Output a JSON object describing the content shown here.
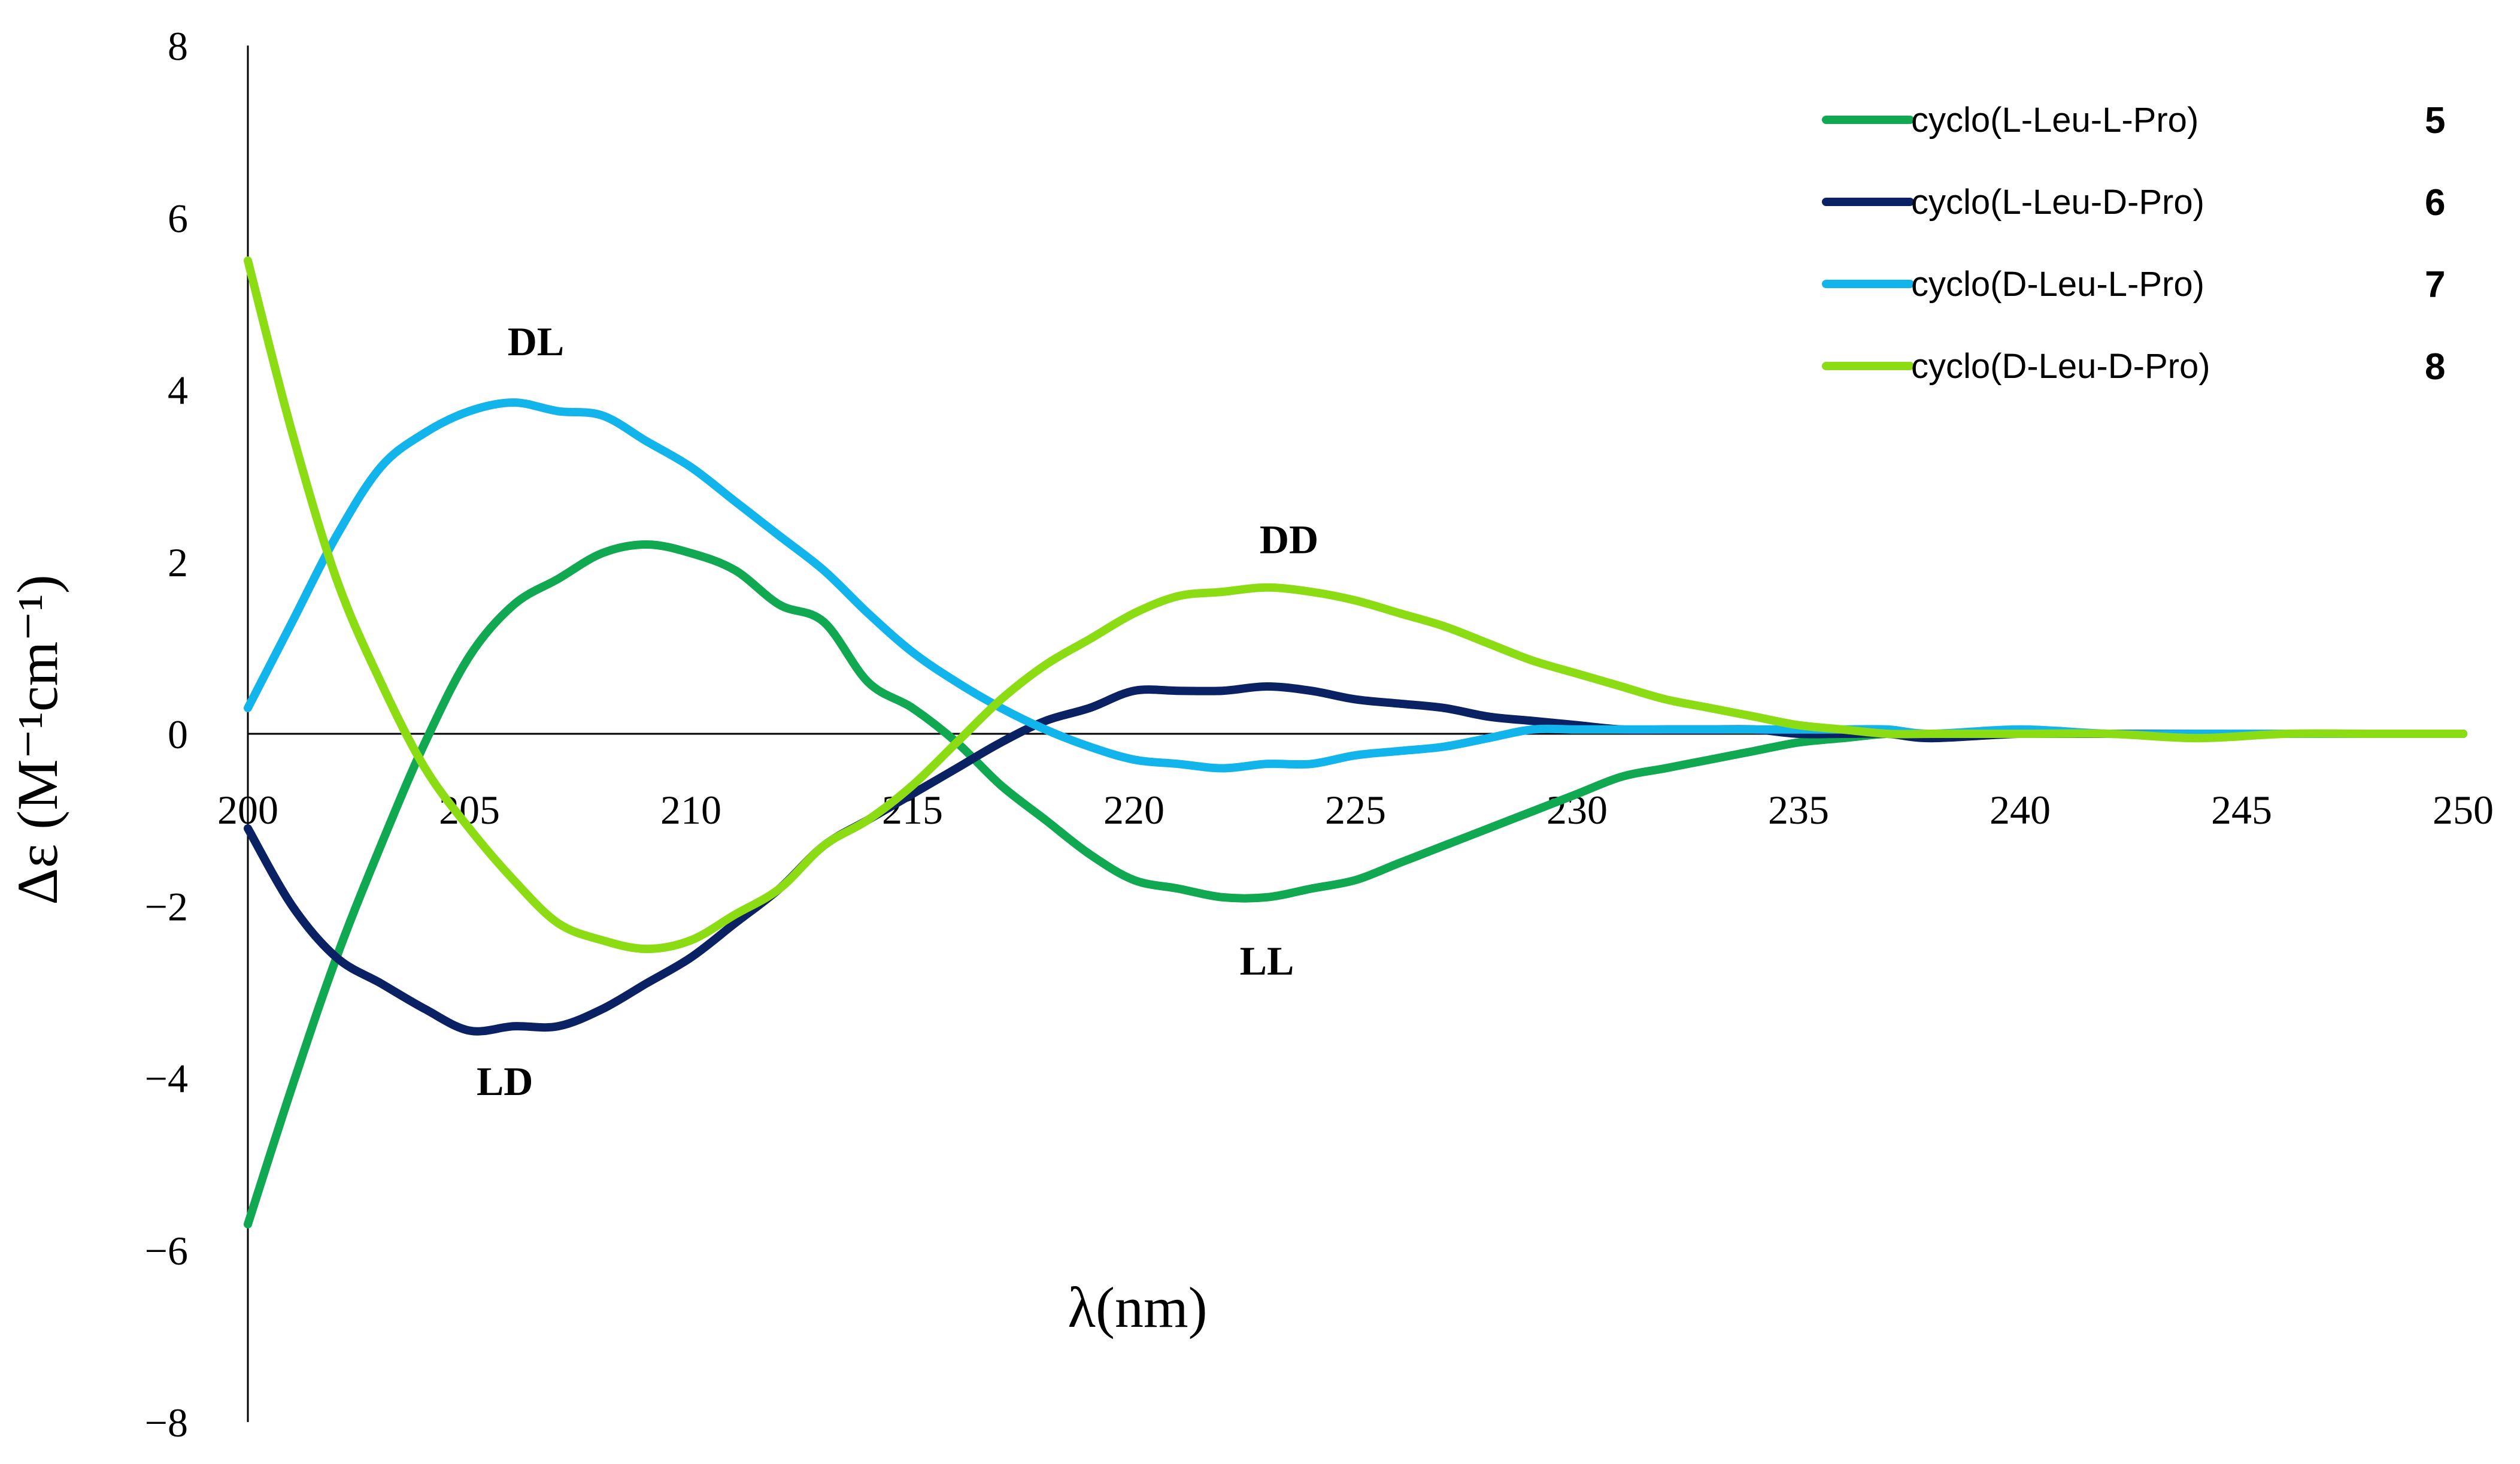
{
  "chart_data": {
    "type": "line",
    "title": "",
    "xlabel": "λ(nm)",
    "ylabel": "Δε (M⁻¹cm⁻¹)",
    "xlim": [
      200,
      250
    ],
    "ylim": [
      -8,
      8
    ],
    "x_ticks": [
      "200",
      "205",
      "210",
      "215",
      "220",
      "225",
      "230",
      "235",
      "240",
      "245",
      "250"
    ],
    "y_ticks": [
      "8",
      "6",
      "4",
      "2",
      "0",
      "−2",
      "−4",
      "−6",
      "−8"
    ],
    "grid": false,
    "legend_position": "top-right",
    "series": [
      {
        "name": "cyclo(L-Leu-L-Pro)",
        "number": "5",
        "color": "#10a850",
        "x": [
          200,
          201,
          202,
          203,
          204,
          205,
          206,
          207,
          208,
          209,
          210,
          211,
          212,
          213,
          214,
          215,
          216,
          217,
          218,
          219,
          220,
          221,
          222,
          223,
          224,
          225,
          226,
          227,
          228,
          229,
          230,
          231,
          232,
          233,
          234,
          235,
          236,
          237,
          238,
          240,
          242,
          244,
          246,
          248,
          250
        ],
        "y": [
          -5.7,
          -4.1,
          -2.6,
          -1.3,
          -0.1,
          0.9,
          1.5,
          1.8,
          2.1,
          2.2,
          2.1,
          1.9,
          1.5,
          1.3,
          0.6,
          0.3,
          -0.1,
          -0.6,
          -1.0,
          -1.4,
          -1.7,
          -1.8,
          -1.9,
          -1.9,
          -1.8,
          -1.7,
          -1.5,
          -1.3,
          -1.1,
          -0.9,
          -0.7,
          -0.5,
          -0.4,
          -0.3,
          -0.2,
          -0.1,
          -0.05,
          0.0,
          0.0,
          0.0,
          0.0,
          0.0,
          0.0,
          0.0,
          0.0
        ]
      },
      {
        "name": "cyclo(L-Leu-D-Pro)",
        "number": "6",
        "color": "#0a2163",
        "x": [
          200,
          201,
          202,
          203,
          204,
          205,
          206,
          207,
          208,
          209,
          210,
          211,
          212,
          213,
          214,
          215,
          216,
          217,
          218,
          219,
          220,
          221,
          222,
          223,
          224,
          225,
          226,
          227,
          228,
          229,
          230,
          231,
          232,
          233,
          234,
          235,
          236,
          237,
          238,
          240,
          242,
          244,
          246,
          248,
          250
        ],
        "y": [
          -1.1,
          -2.0,
          -2.6,
          -2.9,
          -3.2,
          -3.45,
          -3.4,
          -3.4,
          -3.2,
          -2.9,
          -2.6,
          -2.2,
          -1.8,
          -1.3,
          -1.0,
          -0.7,
          -0.4,
          -0.1,
          0.15,
          0.3,
          0.5,
          0.5,
          0.5,
          0.55,
          0.5,
          0.4,
          0.35,
          0.3,
          0.2,
          0.15,
          0.1,
          0.05,
          0.05,
          0.05,
          0.05,
          0.0,
          0.0,
          0.0,
          -0.05,
          0.0,
          0.0,
          0.0,
          0.0,
          0.0,
          0.0
        ]
      },
      {
        "name": "cyclo(D-Leu-L-Pro)",
        "number": "7",
        "color": "#12b4ec",
        "x": [
          200,
          201,
          202,
          203,
          204,
          205,
          206,
          207,
          208,
          209,
          210,
          211,
          212,
          213,
          214,
          215,
          216,
          217,
          218,
          219,
          220,
          221,
          222,
          223,
          224,
          225,
          226,
          227,
          228,
          229,
          230,
          231,
          232,
          233,
          234,
          235,
          236,
          237,
          238,
          240,
          242,
          244,
          246,
          248,
          250
        ],
        "y": [
          0.3,
          1.3,
          2.3,
          3.1,
          3.5,
          3.75,
          3.85,
          3.75,
          3.7,
          3.4,
          3.1,
          2.7,
          2.3,
          1.9,
          1.4,
          0.95,
          0.6,
          0.3,
          0.05,
          -0.15,
          -0.3,
          -0.35,
          -0.4,
          -0.35,
          -0.35,
          -0.25,
          -0.2,
          -0.15,
          -0.05,
          0.05,
          0.05,
          0.05,
          0.05,
          0.05,
          0.05,
          0.05,
          0.05,
          0.05,
          0.0,
          0.05,
          0.0,
          0.0,
          0.0,
          0.0,
          0.0
        ]
      },
      {
        "name": "cyclo(D-Leu-D-Pro)",
        "number": "8",
        "color": "#8cdc14",
        "x": [
          200,
          201,
          202,
          203,
          204,
          205,
          206,
          207,
          208,
          209,
          210,
          211,
          212,
          213,
          214,
          215,
          216,
          217,
          218,
          219,
          220,
          221,
          222,
          223,
          224,
          225,
          226,
          227,
          228,
          229,
          230,
          231,
          232,
          233,
          234,
          235,
          236,
          237,
          238,
          240,
          242,
          244,
          246,
          248,
          250
        ],
        "y": [
          5.5,
          3.5,
          1.8,
          0.6,
          -0.4,
          -1.1,
          -1.7,
          -2.2,
          -2.4,
          -2.5,
          -2.4,
          -2.1,
          -1.8,
          -1.3,
          -1.0,
          -0.6,
          -0.1,
          0.4,
          0.8,
          1.1,
          1.4,
          1.6,
          1.65,
          1.7,
          1.65,
          1.55,
          1.4,
          1.25,
          1.05,
          0.85,
          0.7,
          0.55,
          0.4,
          0.3,
          0.2,
          0.1,
          0.05,
          0.0,
          0.0,
          0.0,
          0.0,
          -0.05,
          0.0,
          0.0,
          0.0
        ]
      }
    ],
    "annotations": [
      {
        "text": "DL",
        "x": 206.5,
        "y": 4.4
      },
      {
        "text": "DD",
        "x": 223.5,
        "y": 2.1
      },
      {
        "text": "LL",
        "x": 223.0,
        "y": -2.8
      },
      {
        "text": "LD",
        "x": 205.8,
        "y": -4.2
      }
    ]
  }
}
